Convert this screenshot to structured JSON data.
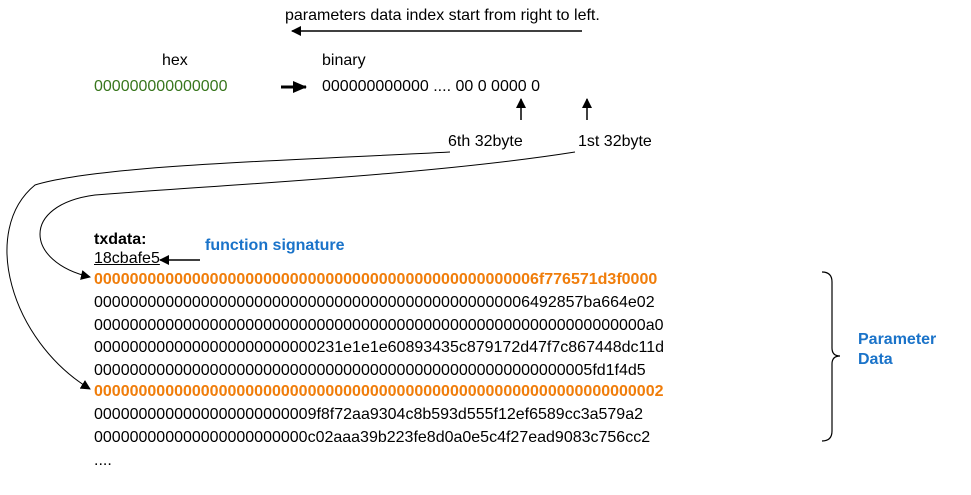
{
  "header": {
    "direction_note": "parameters data index start from right to left."
  },
  "hex": {
    "label": "hex",
    "value": "000000000000000"
  },
  "binary": {
    "label": "binary",
    "value": "000000000000 .... 00 0 0000 0",
    "marker_6th": "6th 32byte",
    "marker_1st": "1st 32byte"
  },
  "txdata": {
    "label": "txdata:",
    "signature": "18cbafe5",
    "signature_label": "function signature",
    "rows": [
      "00000000000000000000000000000000000000000000000006f776571d3f0000",
      "0000000000000000000000000000000000000000000000006492857ba664e02",
      "00000000000000000000000000000000000000000000000000000000000000a0",
      "0000000000000000000000000231e1e1e60893435c879172d47f7c867448dc11d",
      "00000000000000000000000000000000000000000000000000000005fd1f4d5",
      "0000000000000000000000000000000000000000000000000000000000000002",
      "0000000000000000000000009f8f72aa9304c8b593d555f12ef6589cc3a579a2",
      "000000000000000000000000c02aaa39b223fe8d0a0e5c4f27ead9083c756cc2"
    ],
    "ellipsis": "....",
    "highlight_color": "#f07d0a",
    "parameter_label_line1": "Parameter",
    "parameter_label_line2": "Data"
  },
  "colors": {
    "hex": "#38761d",
    "label_blue": "#1a73c9"
  }
}
